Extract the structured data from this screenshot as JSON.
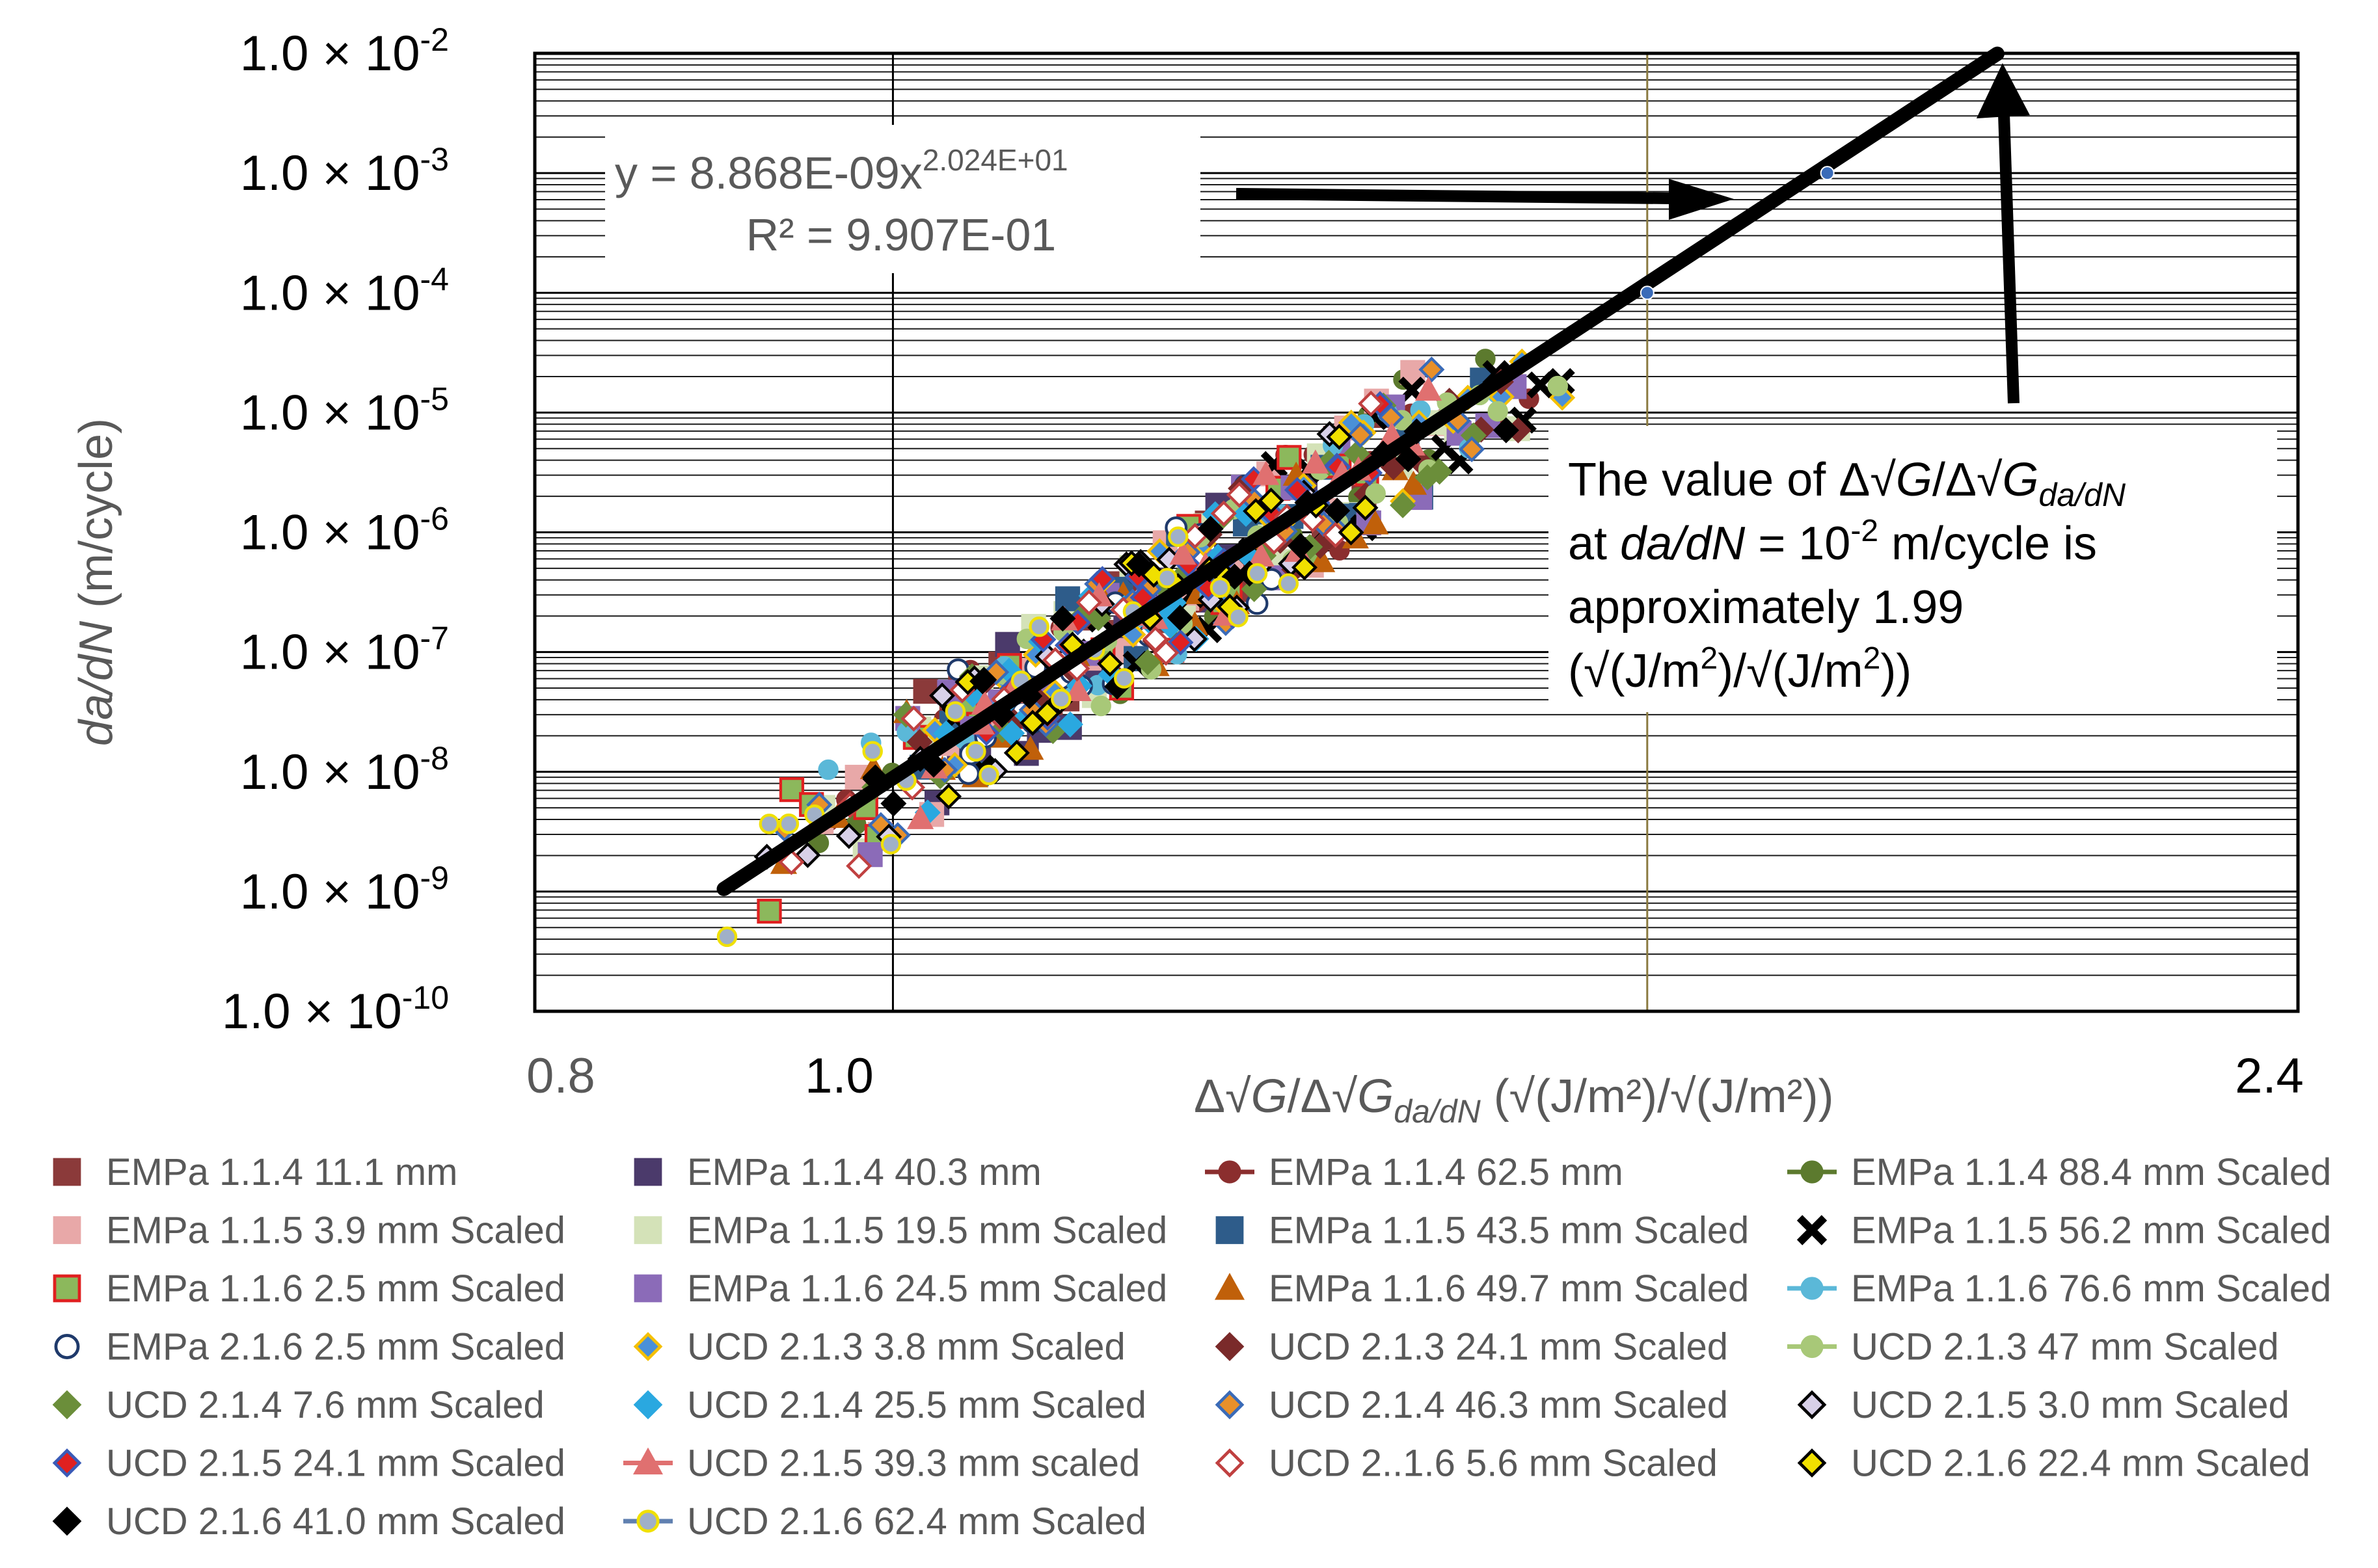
{
  "chart_data": {
    "type": "scatter",
    "title": "",
    "xlabel": {
      "prefix": "Δ√",
      "g1": "G",
      "mid": "/Δ√",
      "g2": "G",
      "sub": "da/dN",
      "units": " (√(J/m²)/√(J/m²))"
    },
    "ylabel": {
      "italic": "da/dN",
      "units": " (m/cycle)"
    },
    "x_scale": "log",
    "y_scale": "log",
    "xlim": [
      0.8,
      2.4
    ],
    "ylim": [
      1e-10,
      0.01
    ],
    "x_tick_labels": [
      {
        "value": 0.8,
        "label": "0.8"
      },
      {
        "value": 1.0,
        "label": "1.0"
      },
      {
        "value": 2.4,
        "label": "2.4"
      }
    ],
    "y_tick_labels": [
      {
        "value": 0.01,
        "mantissa": "1.0 × 10",
        "exp": "-2"
      },
      {
        "value": 0.001,
        "mantissa": "1.0 × 10",
        "exp": "-3"
      },
      {
        "value": 0.0001,
        "mantissa": "1.0 × 10",
        "exp": "-4"
      },
      {
        "value": 1e-05,
        "mantissa": "1.0 × 10",
        "exp": "-5"
      },
      {
        "value": 1e-06,
        "mantissa": "1.0 × 10",
        "exp": "-6"
      },
      {
        "value": 1e-07,
        "mantissa": "1.0 × 10",
        "exp": "-7"
      },
      {
        "value": 1e-08,
        "mantissa": "1.0 × 10",
        "exp": "-8"
      },
      {
        "value": 1e-09,
        "mantissa": "1.0 × 10",
        "exp": "-9"
      },
      {
        "value": 1e-10,
        "mantissa": "1.0 × 10",
        "exp": "-10"
      }
    ],
    "vertical_reference_lines": [
      1.0,
      1.6
    ],
    "fit": {
      "equation_text": "y = 8.868E-09x",
      "equation_exp": "2.024E+01",
      "r2_text": "R² = 9.907E-01",
      "a": 8.868e-09,
      "b": 20.24,
      "x_range": [
        0.9,
        1.99
      ]
    },
    "fit_extension_points": [
      {
        "x": 1.6,
        "y": 0.0001
      },
      {
        "x": 1.79,
        "y": 0.001
      }
    ],
    "annotation": {
      "line1_prefix": "The value of Δ√",
      "line1_g1": "G",
      "line1_mid": "/Δ√",
      "line1_g2": "G",
      "line1_sub": "da/dN",
      "line2_a": "at ",
      "line2_italic": "da/dN",
      "line2_b": " = 10",
      "line2_exp": "-2",
      "line2_c": " m/cycle is",
      "line3": "approximately 1.99",
      "line4_a": "(√(J/m",
      "line4_e1": "2",
      "line4_b": ")/√(J/m",
      "line4_e2": "2",
      "line4_c": "))",
      "target": {
        "x": 1.99,
        "y": 0.01
      }
    },
    "series": [
      {
        "name": "EMPa 1.1.4 11.1 mm",
        "marker": "square",
        "fill": "#8B3A3A",
        "stroke": "#8B3A3A",
        "line": false
      },
      {
        "name": "EMPa 1.1.4 40.3 mm",
        "marker": "square",
        "fill": "#4B3A6B",
        "stroke": "#4B3A6B",
        "line": false
      },
      {
        "name": "EMPa 1.1.4 62.5 mm",
        "marker": "circle",
        "fill": "#8B2E2E",
        "stroke": "#8B2E2E",
        "line": true
      },
      {
        "name": "EMPa 1.1.4 88.4 mm Scaled",
        "marker": "circle",
        "fill": "#5C7A2E",
        "stroke": "#5C7A2E",
        "line": true
      },
      {
        "name": "EMPa 1.1.5 3.9 mm Scaled",
        "marker": "square",
        "fill": "#E8A8A8",
        "stroke": "#E8A8A8",
        "line": false
      },
      {
        "name": "EMPa 1.1.5 19.5 mm Scaled",
        "marker": "square",
        "fill": "#D4E2B8",
        "stroke": "#D4E2B8",
        "line": false
      },
      {
        "name": "EMPa 1.1.5 43.5 mm Scaled",
        "marker": "square",
        "fill": "#2E5C8A",
        "stroke": "#2E5C8A",
        "line": false
      },
      {
        "name": "EMPa 1.1.5 56.2 mm Scaled",
        "marker": "x",
        "fill": "#000000",
        "stroke": "#000000",
        "line": false
      },
      {
        "name": "EMPa 1.1.6 2.5 mm Scaled",
        "marker": "square",
        "fill": "#8CB85C",
        "stroke": "#E02020",
        "line": false
      },
      {
        "name": "EMPa 1.1.6 24.5 mm Scaled",
        "marker": "square",
        "fill": "#8B6BB8",
        "stroke": "#8B6BB8",
        "line": false
      },
      {
        "name": "EMPa 1.1.6 49.7 mm Scaled",
        "marker": "triangle",
        "fill": "#C0600A",
        "stroke": "#C0600A",
        "line": false
      },
      {
        "name": "EMPa 1.1.6 76.6 mm Scaled",
        "marker": "circle",
        "fill": "#5BB8D8",
        "stroke": "#5BB8D8",
        "line": true
      },
      {
        "name": "EMPa 2.1.6 2.5 mm Scaled",
        "marker": "circle-open",
        "fill": "#ffffff",
        "stroke": "#1F3A6B",
        "line": false
      },
      {
        "name": "UCD 2.1.3 3.8 mm Scaled",
        "marker": "diamond",
        "fill": "#4A90D8",
        "stroke": "#F5C000",
        "line": false
      },
      {
        "name": "UCD 2.1.3 24.1 mm Scaled",
        "marker": "diamond",
        "fill": "#7A2A2A",
        "stroke": "#7A2A2A",
        "line": false
      },
      {
        "name": "UCD 2.1.3 47 mm Scaled",
        "marker": "circle",
        "fill": "#A8C878",
        "stroke": "#A8C878",
        "line": true
      },
      {
        "name": "UCD 2.1.4 7.6 mm Scaled",
        "marker": "diamond",
        "fill": "#6B8E3A",
        "stroke": "#6B8E3A",
        "line": false
      },
      {
        "name": "UCD 2.1.4 25.5 mm Scaled",
        "marker": "diamond",
        "fill": "#2AA8E0",
        "stroke": "#2AA8E0",
        "line": false
      },
      {
        "name": "UCD 2.1.4 46.3 mm Scaled",
        "marker": "diamond",
        "fill": "#E8902A",
        "stroke": "#3A6BB8",
        "line": false
      },
      {
        "name": "UCD 2.1.5 3.0 mm Scaled",
        "marker": "diamond",
        "fill": "#D8D0E8",
        "stroke": "#000000",
        "line": false
      },
      {
        "name": "UCD 2.1.5 24.1 mm Scaled",
        "marker": "diamond",
        "fill": "#E02020",
        "stroke": "#3A5BB8",
        "line": false
      },
      {
        "name": "UCD 2.1.5 39.3 mm scaled",
        "marker": "triangle",
        "fill": "#E07070",
        "stroke": "#E07070",
        "line": true
      },
      {
        "name": "UCD 2..1.6 5.6 mm Scaled",
        "marker": "diamond-open",
        "fill": "#ffffff",
        "stroke": "#C04040",
        "line": false
      },
      {
        "name": "UCD 2.1.6 22.4 mm Scaled",
        "marker": "diamond",
        "fill": "#F0E000",
        "stroke": "#000000",
        "line": false
      },
      {
        "name": "UCD 2.1.6 41.0 mm Scaled",
        "marker": "diamond",
        "fill": "#000000",
        "stroke": "#000000",
        "line": false
      },
      {
        "name": "UCD 2.1.6 62.4 mm Scaled",
        "marker": "circle",
        "fill": "#A0B0C8",
        "stroke": "#F0E000",
        "line": true,
        "line_color": "#6080B0"
      }
    ]
  }
}
